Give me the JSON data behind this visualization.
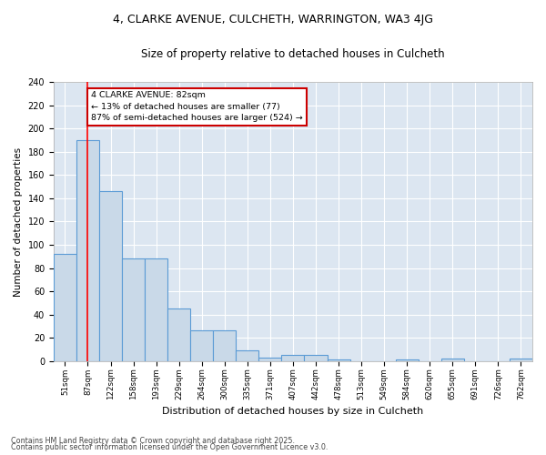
{
  "title1": "4, CLARKE AVENUE, CULCHETH, WARRINGTON, WA3 4JG",
  "title2": "Size of property relative to detached houses in Culcheth",
  "xlabel": "Distribution of detached houses by size in Culcheth",
  "ylabel": "Number of detached properties",
  "categories": [
    "51sqm",
    "87sqm",
    "122sqm",
    "158sqm",
    "193sqm",
    "229sqm",
    "264sqm",
    "300sqm",
    "335sqm",
    "371sqm",
    "407sqm",
    "442sqm",
    "478sqm",
    "513sqm",
    "549sqm",
    "584sqm",
    "620sqm",
    "655sqm",
    "691sqm",
    "726sqm",
    "762sqm"
  ],
  "values": [
    92,
    190,
    146,
    88,
    88,
    45,
    26,
    26,
    9,
    3,
    5,
    5,
    1,
    0,
    0,
    1,
    0,
    2,
    0,
    0,
    2
  ],
  "bar_color": "#c9d9e8",
  "bar_edge_color": "#5b9bd5",
  "plot_bg_color": "#dce6f1",
  "fig_bg_color": "#ffffff",
  "grid_color": "#ffffff",
  "red_line_x": 1.0,
  "annotation_line1": "4 CLARKE AVENUE: 82sqm",
  "annotation_line2": "← 13% of detached houses are smaller (77)",
  "annotation_line3": "87% of semi-detached houses are larger (524) →",
  "annotation_box_color": "#ffffff",
  "annotation_edge_color": "#cc0000",
  "ylim": [
    0,
    240
  ],
  "yticks": [
    0,
    20,
    40,
    60,
    80,
    100,
    120,
    140,
    160,
    180,
    200,
    220,
    240
  ],
  "footer1": "Contains HM Land Registry data © Crown copyright and database right 2025.",
  "footer2": "Contains public sector information licensed under the Open Government Licence v3.0."
}
